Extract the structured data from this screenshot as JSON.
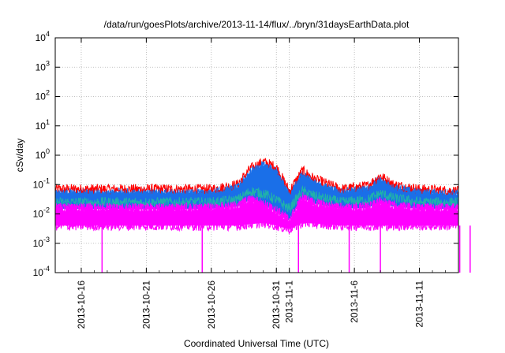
{
  "chart_data": {
    "type": "line",
    "title": "/data/run/goesPlots/archive/2013-11-14/flux/../bryn/31daysEarthData.plot",
    "xlabel": "Coordinated Universal Time (UTC)",
    "ylabel": "cSv/day",
    "yscale": "log",
    "ylim": [
      0.0001,
      10000
    ],
    "xlim": [
      "2013-10-14",
      "2013-11-14"
    ],
    "grid": true,
    "legend": "none",
    "x_ticks": [
      {
        "label": "2013-10-16",
        "date": "2013-10-16"
      },
      {
        "label": "2013-10-21",
        "date": "2013-10-21"
      },
      {
        "label": "2013-10-26",
        "date": "2013-10-26"
      },
      {
        "label": "2013-10-31",
        "date": "2013-10-31"
      },
      {
        "label": "2013-11-1",
        "date": "2013-11-01"
      },
      {
        "label": "2013-11-6",
        "date": "2013-11-06"
      },
      {
        "label": "2013-11-11",
        "date": "2013-11-11"
      }
    ],
    "y_ticks": [
      {
        "base": "10",
        "exp": "-4",
        "value": 0.0001
      },
      {
        "base": "10",
        "exp": "-3",
        "value": 0.001
      },
      {
        "base": "10",
        "exp": "-2",
        "value": 0.01
      },
      {
        "base": "10",
        "exp": "-1",
        "value": 0.1
      },
      {
        "base": "10",
        "exp": "0",
        "value": 1
      },
      {
        "base": "10",
        "exp": "1",
        "value": 10
      },
      {
        "base": "10",
        "exp": "2",
        "value": 100
      },
      {
        "base": "10",
        "exp": "3",
        "value": 1000
      },
      {
        "base": "10",
        "exp": "4",
        "value": 10000
      }
    ],
    "series": [
      {
        "color": "#ff0000",
        "points": [
          [
            "2013-10-14",
            0.07
          ],
          [
            "2013-10-17",
            0.07
          ],
          [
            "2013-10-20",
            0.07
          ],
          [
            "2013-10-23",
            0.07
          ],
          [
            "2013-10-26",
            0.07
          ],
          [
            "2013-10-28",
            0.1
          ],
          [
            "2013-10-29",
            0.35
          ],
          [
            "2013-10-30",
            0.6
          ],
          [
            "2013-10-31",
            0.4
          ],
          [
            "2013-11-01",
            0.06
          ],
          [
            "2013-11-02",
            0.3
          ],
          [
            "2013-11-03",
            0.15
          ],
          [
            "2013-11-05",
            0.07
          ],
          [
            "2013-11-07",
            0.09
          ],
          [
            "2013-11-08",
            0.2
          ],
          [
            "2013-11-09",
            0.1
          ],
          [
            "2013-11-11",
            0.07
          ],
          [
            "2013-11-14",
            0.06
          ]
        ]
      },
      {
        "color": "#1a6fe8",
        "points": [
          [
            "2013-10-14",
            0.045
          ],
          [
            "2013-10-17",
            0.045
          ],
          [
            "2013-10-20",
            0.045
          ],
          [
            "2013-10-23",
            0.045
          ],
          [
            "2013-10-26",
            0.05
          ],
          [
            "2013-10-28",
            0.07
          ],
          [
            "2013-10-29",
            0.25
          ],
          [
            "2013-10-30",
            0.45
          ],
          [
            "2013-10-31",
            0.25
          ],
          [
            "2013-11-01",
            0.04
          ],
          [
            "2013-11-02",
            0.2
          ],
          [
            "2013-11-03",
            0.1
          ],
          [
            "2013-11-05",
            0.05
          ],
          [
            "2013-11-07",
            0.06
          ],
          [
            "2013-11-08",
            0.12
          ],
          [
            "2013-11-09",
            0.07
          ],
          [
            "2013-11-11",
            0.05
          ],
          [
            "2013-11-14",
            0.045
          ]
        ]
      },
      {
        "color": "#20b2aa",
        "points": [
          [
            "2013-10-14",
            0.025
          ],
          [
            "2013-10-17",
            0.025
          ],
          [
            "2013-10-20",
            0.025
          ],
          [
            "2013-10-23",
            0.025
          ],
          [
            "2013-10-26",
            0.025
          ],
          [
            "2013-10-28",
            0.03
          ],
          [
            "2013-10-29",
            0.06
          ],
          [
            "2013-10-30",
            0.05
          ],
          [
            "2013-10-31",
            0.03
          ],
          [
            "2013-11-01",
            0.015
          ],
          [
            "2013-11-02",
            0.06
          ],
          [
            "2013-11-03",
            0.04
          ],
          [
            "2013-11-05",
            0.025
          ],
          [
            "2013-11-07",
            0.03
          ],
          [
            "2013-11-08",
            0.05
          ],
          [
            "2013-11-09",
            0.035
          ],
          [
            "2013-11-11",
            0.025
          ],
          [
            "2013-11-14",
            0.025
          ]
        ]
      },
      {
        "color": "#ff00ff",
        "points": [
          [
            "2013-10-14",
            0.015
          ],
          [
            "2013-10-17",
            0.015
          ],
          [
            "2013-10-20",
            0.015
          ],
          [
            "2013-10-23",
            0.015
          ],
          [
            "2013-10-26",
            0.015
          ],
          [
            "2013-10-28",
            0.018
          ],
          [
            "2013-10-29",
            0.03
          ],
          [
            "2013-10-30",
            0.02
          ],
          [
            "2013-10-31",
            0.012
          ],
          [
            "2013-11-01",
            0.006
          ],
          [
            "2013-11-02",
            0.035
          ],
          [
            "2013-11-03",
            0.022
          ],
          [
            "2013-11-05",
            0.015
          ],
          [
            "2013-11-07",
            0.016
          ],
          [
            "2013-11-08",
            0.025
          ],
          [
            "2013-11-09",
            0.018
          ],
          [
            "2013-11-11",
            0.015
          ],
          [
            "2013-11-14",
            0.015
          ]
        ]
      },
      {
        "color": "#ff00ff",
        "points": [
          [
            "2013-10-14",
            0.004
          ],
          [
            "2013-10-20",
            0.004
          ],
          [
            "2013-10-26",
            0.004
          ],
          [
            "2013-10-28",
            0.004
          ],
          [
            "2013-10-30",
            0.005
          ],
          [
            "2013-10-31",
            0.004
          ],
          [
            "2013-11-01",
            0.003
          ],
          [
            "2013-11-02",
            0.005
          ],
          [
            "2013-11-05",
            0.004
          ],
          [
            "2013-11-10",
            0.004
          ],
          [
            "2013-11-14",
            0.004
          ]
        ]
      }
    ],
    "dropouts": [
      {
        "date": "2013-10-17.6",
        "value": 0.0001
      },
      {
        "date": "2013-10-25.3",
        "value": 0.0001
      },
      {
        "date": "2013-11-01.7",
        "value": 0.0001
      },
      {
        "date": "2013-11-05.6",
        "value": 0.0001
      },
      {
        "date": "2013-11-08.0",
        "value": 0.0001
      },
      {
        "date": "2013-11-14.1",
        "value": 0.0001
      },
      {
        "date": "2013-11-14.9",
        "value": 0.0001
      }
    ]
  }
}
